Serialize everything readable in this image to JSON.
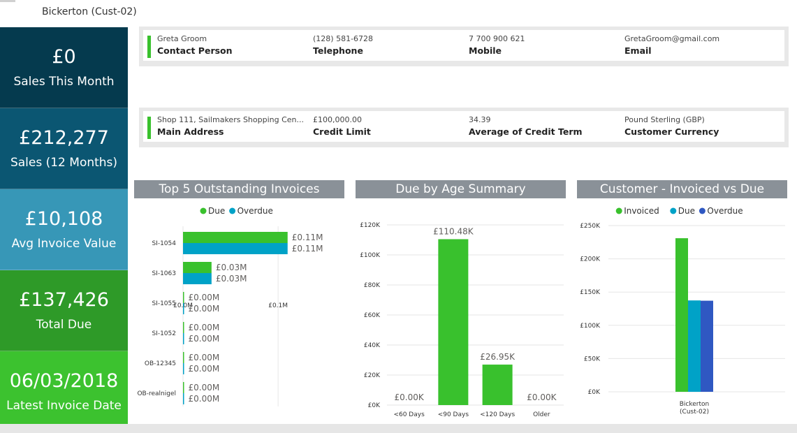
{
  "header": {
    "title": "Bickerton (Cust-02)"
  },
  "kpis": [
    {
      "value": "£0",
      "label": "Sales This Month",
      "color": "#053a4e"
    },
    {
      "value": "£212,277",
      "label": "Sales (12 Months)",
      "color": "#0b5672"
    },
    {
      "value": "£10,108",
      "label": "Avg Invoice Value",
      "color": "#3797b7"
    },
    {
      "value": "£137,426",
      "label": "Total Due",
      "color": "#2e9a28"
    },
    {
      "value": "06/03/2018",
      "label": "Latest Invoice Date",
      "color": "#3cc22f"
    }
  ],
  "contact": {
    "person": {
      "value": "Greta Groom",
      "label": "Contact Person"
    },
    "telephone": {
      "value": "(128) 581-6728",
      "label": "Telephone"
    },
    "mobile": {
      "value": "7 700 900 621",
      "label": "Mobile"
    },
    "email": {
      "value": "GretaGroom@gmail.com",
      "label": "Email"
    }
  },
  "account": {
    "address": {
      "value": "Shop 111, Sailmakers Shopping Cen...",
      "label": "Main Address"
    },
    "credit_limit": {
      "value": "£100,000.00",
      "label": "Credit Limit"
    },
    "credit_term": {
      "value": "34.39",
      "label": "Average of Credit Term"
    },
    "currency": {
      "value": "Pound Sterling (GBP)",
      "label": "Customer Currency"
    }
  },
  "colors": {
    "due": "#39c12d",
    "overdue": "#00a2c7",
    "invoiced": "#39c12d",
    "overdue_dark": "#2f58c2"
  },
  "chart_data": [
    {
      "type": "bar",
      "orientation": "horizontal",
      "title": "Top 5 Outstanding Invoices",
      "categories": [
        "SI-1054",
        "SI-1063",
        "SI-1055",
        "SI-1052",
        "OB-12345",
        "OB-realnigel"
      ],
      "series": [
        {
          "name": "Due",
          "values": [
            0.11,
            0.03,
            0.0,
            0.0,
            0.0,
            0.0
          ],
          "labels": [
            "£0.11M",
            "£0.03M",
            "£0.00M",
            "£0.00M",
            "£0.00M",
            "£0.00M"
          ]
        },
        {
          "name": "Overdue",
          "values": [
            0.11,
            0.03,
            0.0,
            0.0,
            0.0,
            0.0
          ],
          "labels": [
            "£0.11M",
            "£0.03M",
            "£0.00M",
            "£0.00M",
            "£0.00M",
            "£0.00M"
          ]
        }
      ],
      "xticks": [
        "£0.0M",
        "£0.1M"
      ],
      "xtick_values": [
        0,
        0.1
      ],
      "xlim": [
        0,
        0.155
      ],
      "legend": "top-center",
      "grid": true
    },
    {
      "type": "bar",
      "title": "Due by Age Summary",
      "categories": [
        "<60 Days",
        "<90 Days",
        "<120 Days",
        "Older"
      ],
      "values": [
        0,
        110480,
        26950,
        0
      ],
      "labels": [
        "£0.00K",
        "£110.48K",
        "£26.95K",
        "£0.00K"
      ],
      "yticks": [
        "£0K",
        "£20K",
        "£40K",
        "£60K",
        "£80K",
        "£100K",
        "£120K"
      ],
      "ylim": [
        0,
        120000
      ],
      "grid": true
    },
    {
      "type": "bar",
      "title": "Customer - Invoiced vs Due",
      "categories": [
        "Bickerton (Cust-02)"
      ],
      "category_lines": [
        "Bickerton",
        "(Cust-02)"
      ],
      "series": [
        {
          "name": "Invoiced",
          "values": [
            231000
          ]
        },
        {
          "name": "Due",
          "values": [
            137426
          ]
        },
        {
          "name": "Overdue",
          "values": [
            137000
          ]
        }
      ],
      "yticks": [
        "£0K",
        "£50K",
        "£100K",
        "£150K",
        "£200K",
        "£250K"
      ],
      "ylim": [
        0,
        250000
      ],
      "legend": "top-center",
      "grid": true
    }
  ]
}
